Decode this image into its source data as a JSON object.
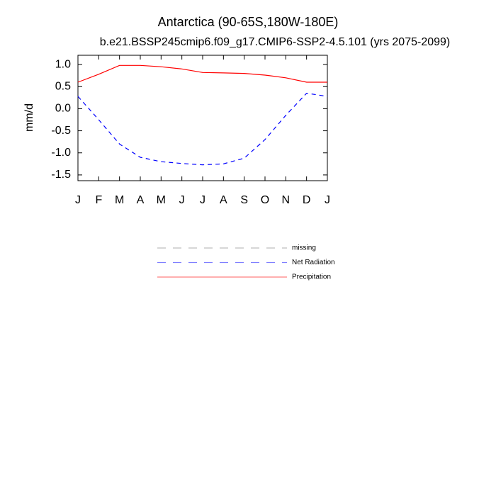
{
  "chart_data": {
    "type": "line",
    "title": "Antarctica (90-65S,180W-180E)",
    "subtitle": "b.e21.BSSP245cmip6.f09_g17.CMIP6-SSP2-4.5.101 (yrs 2075-2099)",
    "y_label": "mm/d",
    "categories": [
      "J",
      "F",
      "M",
      "A",
      "M",
      "J",
      "J",
      "A",
      "S",
      "O",
      "N",
      "D",
      "J"
    ],
    "series": [
      {
        "name": "missing",
        "color": "#808080",
        "dashed": true,
        "values": [
          null,
          null,
          null,
          null,
          null,
          null,
          null,
          null,
          null,
          null,
          null,
          null,
          null
        ]
      },
      {
        "name": "Net Radiation",
        "color": "#0000ff",
        "dashed": true,
        "values": [
          0.28,
          -0.25,
          -0.8,
          -1.1,
          -1.2,
          -1.24,
          -1.27,
          -1.25,
          -1.12,
          -0.7,
          -0.15,
          0.35,
          0.28
        ]
      },
      {
        "name": "Precipitation",
        "color": "#ff0000",
        "dashed": false,
        "values": [
          0.6,
          0.78,
          0.98,
          0.98,
          0.95,
          0.9,
          0.82,
          0.81,
          0.8,
          0.76,
          0.7,
          0.6,
          0.6
        ]
      }
    ],
    "ylim": [
      -1.63,
      1.21
    ],
    "yticks": [
      {
        "value": 1.0,
        "label": "1.0"
      },
      0.5,
      {
        "value": 0.0,
        "label": "0.0"
      },
      -0.5,
      {
        "value": -1.0,
        "label": "-1.0"
      },
      -1.5
    ]
  }
}
